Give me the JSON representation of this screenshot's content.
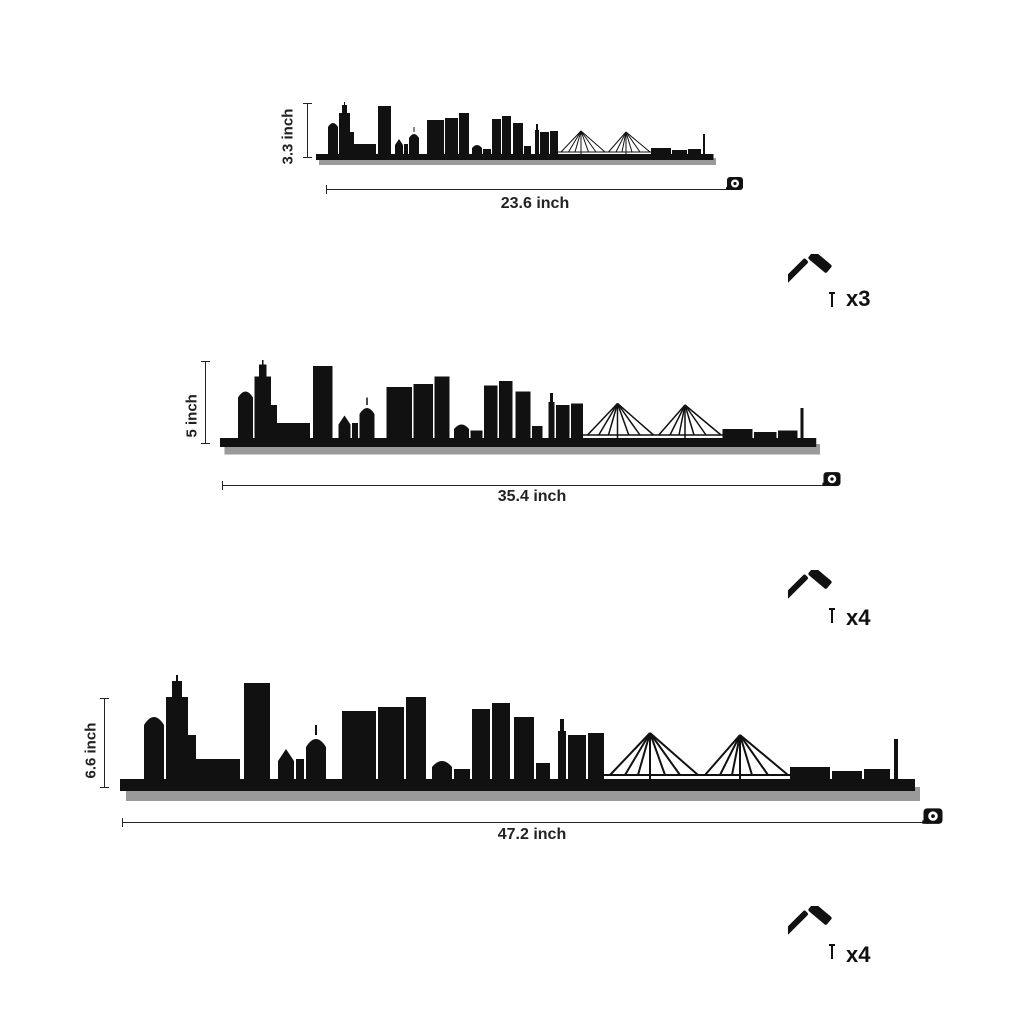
{
  "sizes": [
    {
      "height_label": "3.3 inch",
      "width_label": "23.6 inch",
      "nail_count": "x3"
    },
    {
      "height_label": "5 inch",
      "width_label": "35.4 inch",
      "nail_count": "x4"
    },
    {
      "height_label": "6.6 inch",
      "width_label": "47.2 inch",
      "nail_count": "x4"
    }
  ],
  "icons": {
    "skyline": "city-skyline-icon",
    "tape": "tape-measure-icon",
    "hammer": "hammer-icon",
    "nail": "nail-icon"
  },
  "colors": {
    "ink": "#111111",
    "shadow": "#8a8a8a"
  }
}
